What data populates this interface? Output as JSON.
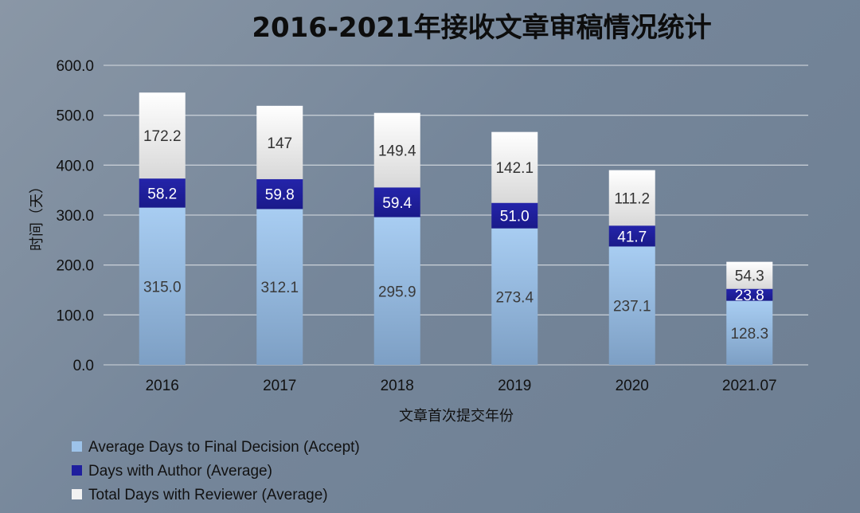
{
  "chart_data": {
    "type": "bar",
    "stacked": true,
    "title": "2016-2021年接收文章审稿情况统计",
    "xlabel": "文章首次提交年份",
    "ylabel": "时间（天）",
    "ylim": [
      0,
      600
    ],
    "yticks": [
      "0.0",
      "100.0",
      "200.0",
      "300.0",
      "400.0",
      "500.0",
      "600.0"
    ],
    "grid": true,
    "legend_position": "bottom-left",
    "categories": [
      "2016",
      "2017",
      "2018",
      "2019",
      "2020",
      "2021.07"
    ],
    "series": [
      {
        "name": "Average Days to Final Decision (Accept)",
        "color": "#9dc3ea",
        "values": [
          315.0,
          312.1,
          295.9,
          273.4,
          237.1,
          128.3
        ],
        "labels": [
          "315.0",
          "312.1",
          "295.9",
          "273.4",
          "237.1",
          "128.3"
        ]
      },
      {
        "name": "Days with Author (Average)",
        "color": "#1f1f9e",
        "values": [
          58.2,
          59.8,
          59.4,
          51.0,
          41.7,
          23.8
        ],
        "labels": [
          "58.2",
          "59.8",
          "59.4",
          "51.0",
          "41.7",
          "23.8"
        ]
      },
      {
        "name": "Total Days with Reviewer (Average)",
        "color": "#f2f2f2",
        "values": [
          172.2,
          147,
          149.4,
          142.1,
          111.2,
          54.3
        ],
        "labels": [
          "172.2",
          "147",
          "149.4",
          "142.1",
          "111.2",
          "54.3"
        ]
      }
    ]
  }
}
